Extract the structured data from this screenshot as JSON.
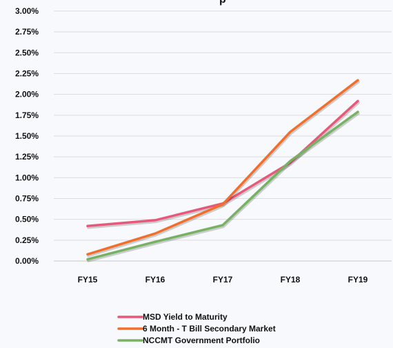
{
  "chart_data": {
    "type": "line",
    "title": "",
    "title_fragment": "p",
    "categories": [
      "FY15",
      "FY16",
      "FY17",
      "FY18",
      "FY19"
    ],
    "ylim": [
      0,
      0.03
    ],
    "y_ticks": [
      "0.00%",
      "0.25%",
      "0.50%",
      "0.75%",
      "1.00%",
      "1.25%",
      "1.50%",
      "1.75%",
      "2.00%",
      "2.25%",
      "2.50%",
      "2.75%",
      "3.00%"
    ],
    "grid": {
      "horizontal": true,
      "vertical": false
    },
    "legend_position": "bottom",
    "series": [
      {
        "name": "MSD Yield to Maturity",
        "color": "#E8587A",
        "values": [
          0.0042,
          0.0049,
          0.0069,
          0.0118,
          0.0192
        ]
      },
      {
        "name": "6 Month - T Bill Secondary Market",
        "color": "#F26F2B",
        "values": [
          0.0008,
          0.0033,
          0.0068,
          0.0155,
          0.0217
        ]
      },
      {
        "name": "NCCMT Government Portfolio",
        "color": "#77B263",
        "values": [
          0.0002,
          0.0023,
          0.0043,
          0.012,
          0.0179
        ]
      }
    ]
  }
}
